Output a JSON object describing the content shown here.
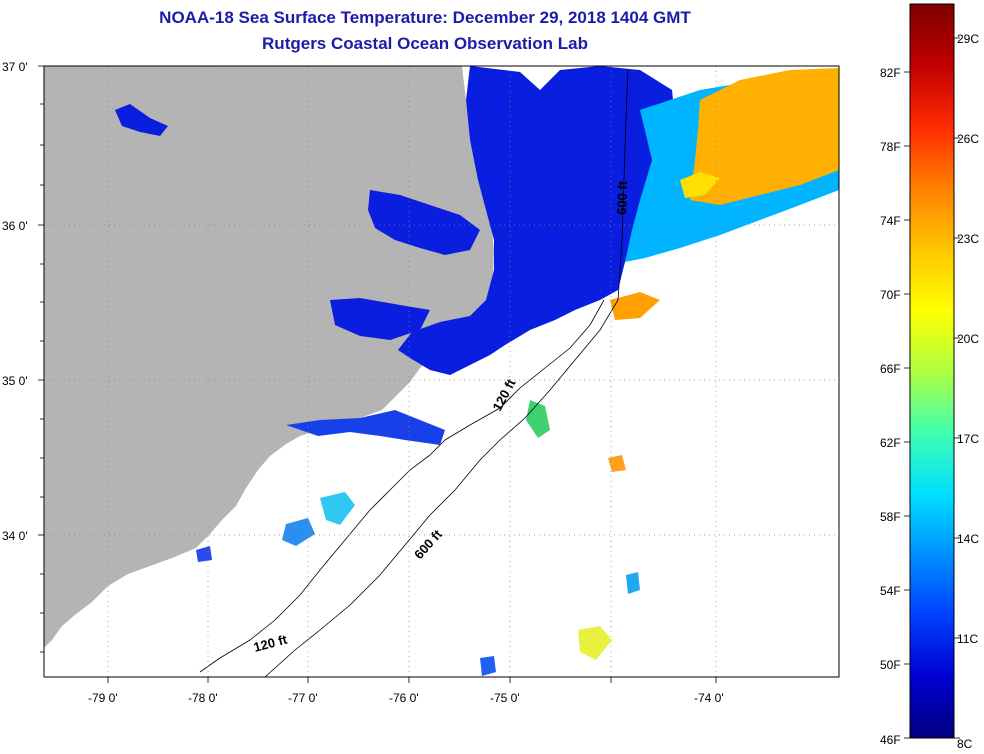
{
  "header": {
    "title": "NOAA-18 Sea Surface Temperature:  December 29, 2018 1404 GMT",
    "subtitle": "Rutgers Coastal Ocean Observation Lab"
  },
  "axes": {
    "lon_labels": [
      "-79 0'",
      "-78 0'",
      "-77 0'",
      "-76 0'",
      "-75 0'",
      "-74 0'"
    ],
    "lat_labels": [
      "37 0'",
      "36 0'",
      "35 0'",
      "34 0'"
    ]
  },
  "contours": {
    "labels": [
      "120 ft",
      "600 ft",
      "600 ft",
      "120 ft"
    ]
  },
  "colorbar": {
    "fahrenheit": [
      "82F",
      "78F",
      "74F",
      "70F",
      "66F",
      "62F",
      "58F",
      "54F",
      "50F",
      "46F"
    ],
    "celsius": [
      "29C",
      "26C",
      "23C",
      "20C",
      "17C",
      "14C",
      "11C",
      "8C"
    ],
    "colors": [
      "#7f0000",
      "#c00000",
      "#ff2a00",
      "#ff7f00",
      "#ffc400",
      "#ffff00",
      "#b0ff40",
      "#40ffb0",
      "#00e0ff",
      "#0090ff",
      "#0040ff",
      "#0000d0",
      "#00007f"
    ]
  },
  "colors": {
    "land": "#b4b4b4",
    "cold_water": "#0a1ee0",
    "title_text": "#1c1ca8"
  }
}
